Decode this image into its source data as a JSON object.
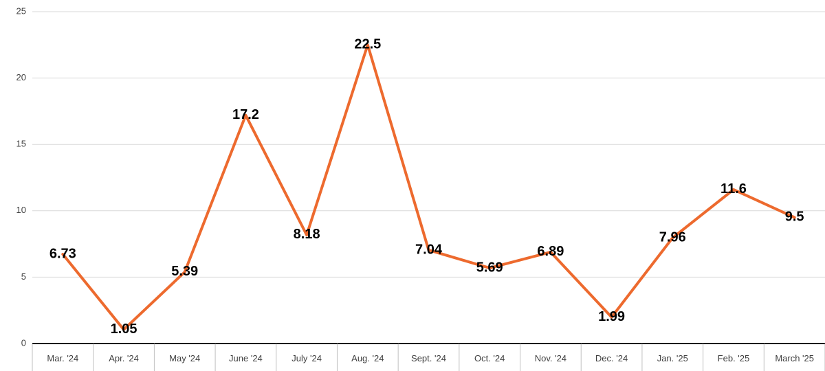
{
  "chart_data": {
    "type": "line",
    "categories": [
      "Mar. '24",
      "Apr. '24",
      "May '24",
      "June '24",
      "July '24",
      "Aug. '24",
      "Sept. '24",
      "Oct. '24",
      "Nov. '24",
      "Dec. '24",
      "Jan. '25",
      "Feb. '25",
      "March '25"
    ],
    "series": [
      {
        "values": [
          6.73,
          1.05,
          5.39,
          17.2,
          8.18,
          22.5,
          7.04,
          5.69,
          6.89,
          1.99,
          7.96,
          11.6,
          9.5
        ],
        "value_labels": [
          "6.73",
          "1.05",
          "5.39",
          "17.2",
          "8.18",
          "22.5",
          "7.04",
          "5.69",
          "6.89",
          "1.99",
          "7.96",
          "11.6",
          "9.5"
        ],
        "color": "#ED6A2E"
      }
    ],
    "ylim": [
      0,
      25
    ],
    "yticks": [
      "0",
      "5",
      "10",
      "15",
      "20",
      "25"
    ],
    "title": "",
    "xlabel": "",
    "ylabel": "",
    "grid": "horizontal",
    "legend": "none"
  }
}
